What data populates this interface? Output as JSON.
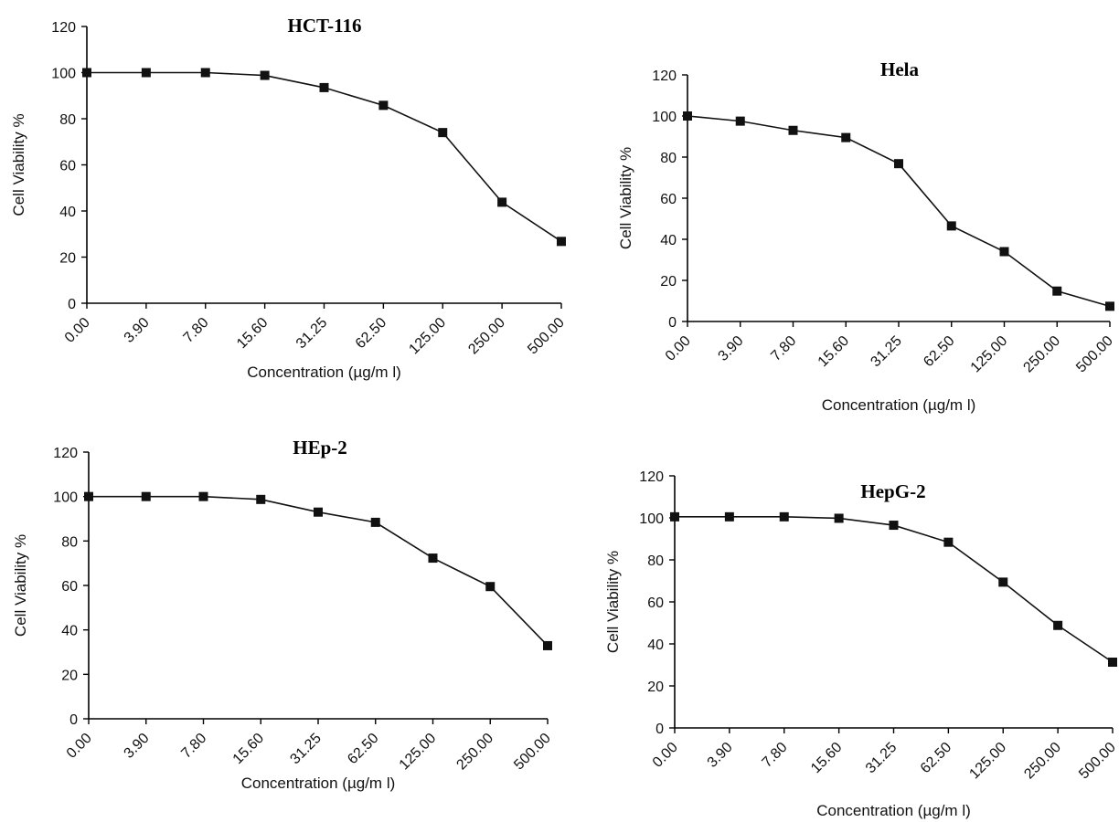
{
  "chart_data": [
    {
      "type": "line",
      "title": "HCT-116",
      "xlabel": "Concentration (µg/m l)",
      "ylabel": "Cell Viability %",
      "categories": [
        "0.00",
        "3.90",
        "7.80",
        "15.60",
        "31.25",
        "62.50",
        "125.00",
        "250.00",
        "500.00"
      ],
      "yticks": [
        "0",
        "20",
        "40",
        "60",
        "80",
        "100",
        "120"
      ],
      "ylim": [
        0,
        120
      ],
      "series": [
        {
          "values": [
            100,
            100,
            100,
            98.8,
            93.5,
            85.8,
            74,
            43.8,
            26.8
          ]
        }
      ]
    },
    {
      "type": "line",
      "title": "Hela",
      "xlabel": "Concentration (µg/m l)",
      "ylabel": "Cell Viability %",
      "categories": [
        "0.00",
        "3.90",
        "7.80",
        "15.60",
        "31.25",
        "62.50",
        "125.00",
        "250.00",
        "500.00"
      ],
      "yticks": [
        "0",
        "20",
        "40",
        "60",
        "80",
        "100",
        "120"
      ],
      "ylim": [
        0,
        120
      ],
      "series": [
        {
          "values": [
            100,
            97.5,
            93,
            89.5,
            76.8,
            46.5,
            34,
            14.8,
            7.4
          ]
        }
      ]
    },
    {
      "type": "line",
      "title": "HEp-2",
      "xlabel": "Concentration (µg/m l)",
      "ylabel": "Cell Viability %",
      "categories": [
        "0.00",
        "3.90",
        "7.80",
        "15.60",
        "31.25",
        "62.50",
        "125.00",
        "250.00",
        "500.00"
      ],
      "yticks": [
        "0",
        "20",
        "40",
        "60",
        "80",
        "100",
        "120"
      ],
      "ylim": [
        0,
        120
      ],
      "series": [
        {
          "values": [
            100,
            100,
            100,
            98.7,
            93,
            88.4,
            72.3,
            59.5,
            32.9
          ]
        }
      ]
    },
    {
      "type": "line",
      "title": "HepG-2",
      "xlabel": "Concentration (µg/m l)",
      "ylabel": "Cell Viability %",
      "categories": [
        "0.00",
        "3.90",
        "7.80",
        "15.60",
        "31.25",
        "62.50",
        "125.00",
        "250.00",
        "500.00"
      ],
      "yticks": [
        "0",
        "20",
        "40",
        "60",
        "80",
        "100",
        "120"
      ],
      "ylim": [
        0,
        120
      ],
      "series": [
        {
          "values": [
            100.5,
            100.5,
            100.5,
            99.8,
            96.5,
            88.4,
            69.4,
            48.8,
            31.3
          ]
        }
      ]
    }
  ]
}
